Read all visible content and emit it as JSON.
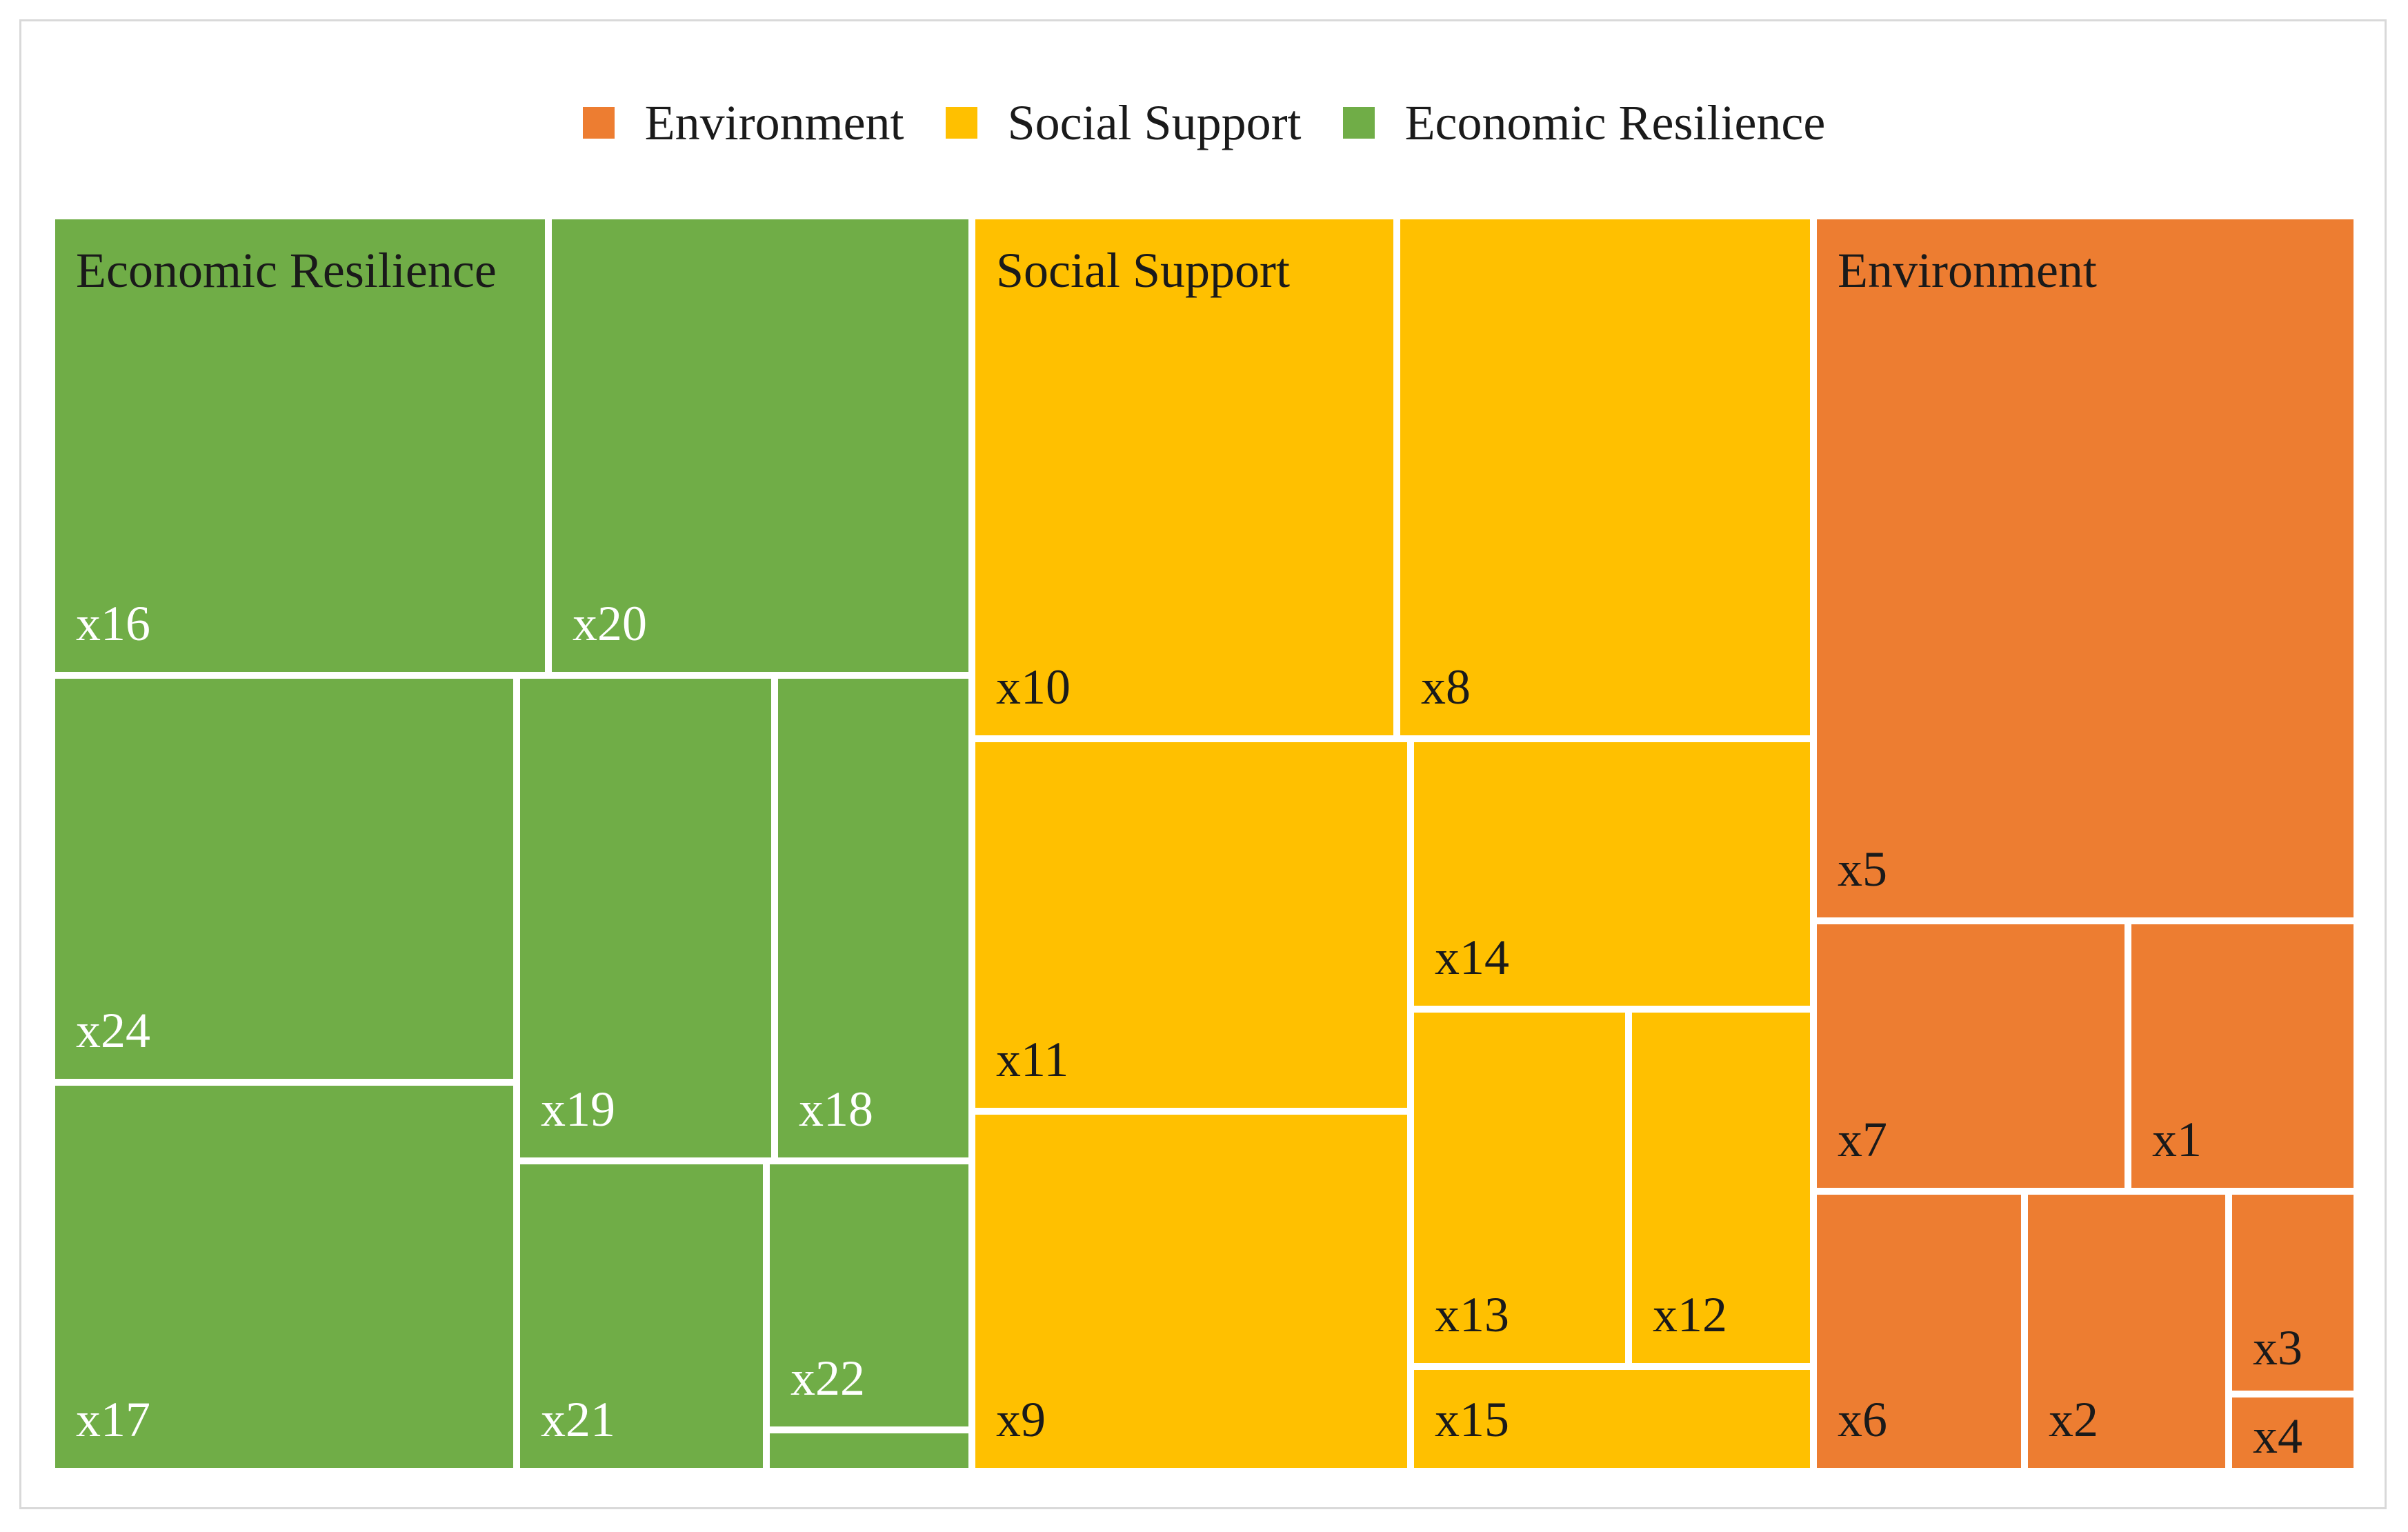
{
  "chart_data": {
    "type": "treemap",
    "legend": [
      {
        "name": "Environment",
        "color": "#ED7D31"
      },
      {
        "name": "Social Support",
        "color": "#FFC000"
      },
      {
        "name": "Economic Resilience",
        "color": "#70AD47"
      }
    ],
    "groups": [
      {
        "name": "Economic Resilience",
        "color": "#70AD47",
        "items": [
          {
            "label": "x16",
            "value": 9.4
          },
          {
            "label": "x20",
            "value": 8.0
          },
          {
            "label": "x24",
            "value": 7.5
          },
          {
            "label": "x17",
            "value": 7.2
          },
          {
            "label": "x19",
            "value": 4.9
          },
          {
            "label": "x18",
            "value": 3.9
          },
          {
            "label": "x21",
            "value": 3.5
          },
          {
            "label": "x22",
            "value": 2.1
          },
          {
            "label": "",
            "value": 0.3
          }
        ]
      },
      {
        "name": "Social Support",
        "color": "#FFC000",
        "items": [
          {
            "label": "x10",
            "value": 9.2
          },
          {
            "label": "x8",
            "value": 8.9
          },
          {
            "label": "x11",
            "value": 6.6
          },
          {
            "label": "x9",
            "value": 6.4
          },
          {
            "label": "x14",
            "value": 4.4
          },
          {
            "label": "x13",
            "value": 3.1
          },
          {
            "label": "x12",
            "value": 2.6
          },
          {
            "label": "x15",
            "value": 1.6
          }
        ]
      },
      {
        "name": "Environment",
        "color": "#ED7D31",
        "items": [
          {
            "label": "x5",
            "value": 15.7
          },
          {
            "label": "x7",
            "value": 3.4
          },
          {
            "label": "x1",
            "value": 2.5
          },
          {
            "label": "x6",
            "value": 2.4
          },
          {
            "label": "x2",
            "value": 2.3
          },
          {
            "label": "x3",
            "value": 1.2
          },
          {
            "label": "x4",
            "value": 0.5
          }
        ]
      }
    ]
  }
}
